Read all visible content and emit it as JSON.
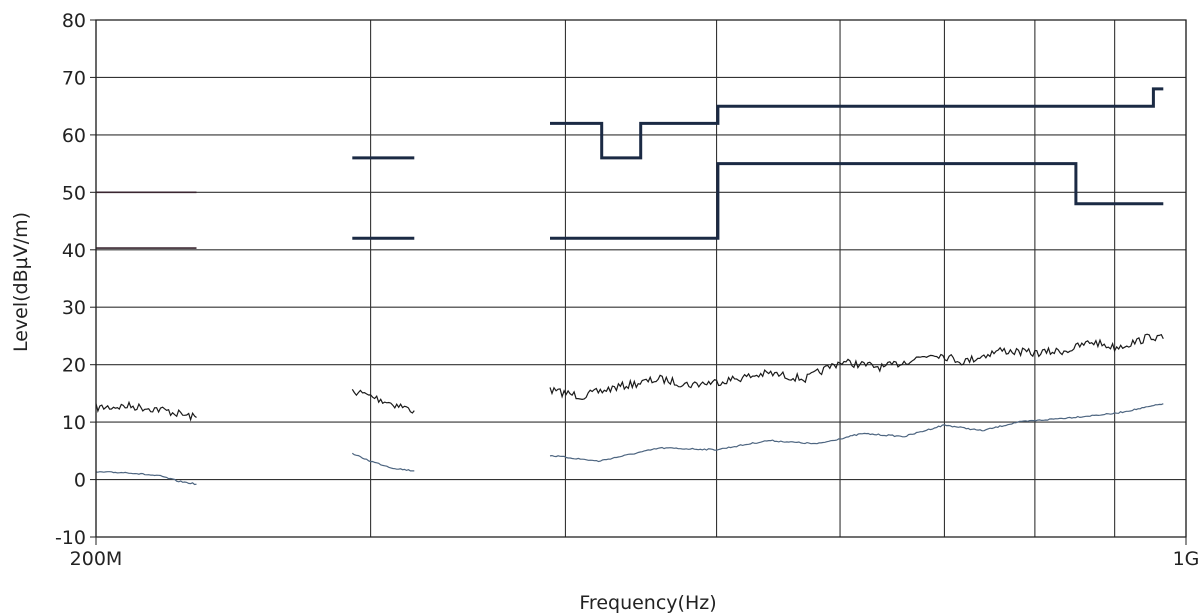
{
  "chart_data": {
    "type": "line",
    "title": "",
    "xlabel": "Frequency(Hz)",
    "ylabel": "Level(dBµV/m)",
    "xscale": "log",
    "xlim": [
      200000000,
      1000000000
    ],
    "ylim": [
      -10,
      80
    ],
    "grid": true,
    "legend": "none",
    "xtick_labels": [
      {
        "value": 200000000,
        "label": "200M"
      },
      {
        "value": 1000000000,
        "label": "1G"
      }
    ],
    "yticks": [
      -10,
      0,
      10,
      20,
      30,
      40,
      50,
      60,
      70,
      80
    ],
    "x_gridlines": [
      200000000,
      300000000,
      400000000,
      500000000,
      600000000,
      700000000,
      800000000,
      900000000,
      1000000000
    ],
    "colors": {
      "limit": "#1b2a44",
      "old_limit": "#3a2630",
      "peak": "#1a1a1a",
      "average": "#4d6580",
      "grid": "#333333"
    },
    "series": [
      {
        "role": "limit",
        "color": "old_limit",
        "width": 1.6,
        "segments": [
          [
            [
              200000000,
              50
            ],
            [
              232000000,
              50
            ]
          ]
        ]
      },
      {
        "role": "limit",
        "color": "old_limit",
        "width": 1.6,
        "segments": [
          [
            [
              200000000,
              40.3
            ],
            [
              232000000,
              40.3
            ]
          ]
        ]
      },
      {
        "role": "limit",
        "color": "limit",
        "width": 3,
        "segments": [
          [
            [
              292000000,
              56
            ],
            [
              320000000,
              56
            ]
          ],
          [
            [
              391000000,
              62
            ],
            [
              422000000,
              62
            ],
            [
              422000000,
              56
            ],
            [
              447000000,
              56
            ],
            [
              447000000,
              62
            ],
            [
              501000000,
              62
            ],
            [
              501000000,
              65
            ],
            [
              953000000,
              65
            ],
            [
              953000000,
              68
            ],
            [
              967000000,
              68
            ]
          ]
        ]
      },
      {
        "role": "limit",
        "color": "limit",
        "width": 3,
        "segments": [
          [
            [
              292000000,
              42
            ],
            [
              320000000,
              42
            ]
          ],
          [
            [
              391000000,
              42
            ],
            [
              501000000,
              42
            ],
            [
              501000000,
              55
            ],
            [
              850000000,
              55
            ],
            [
              850000000,
              48
            ],
            [
              967000000,
              48
            ]
          ]
        ]
      },
      {
        "role": "peak",
        "color": "peak",
        "width": 1.2,
        "noise": 0.7,
        "segments": [
          [
            [
              200000000,
              12.5
            ],
            [
              210000000,
              12.8
            ],
            [
              220000000,
              12.2
            ],
            [
              228000000,
              11.2
            ],
            [
              232000000,
              10.8
            ]
          ],
          [
            [
              292000000,
              15.5
            ],
            [
              300000000,
              14.5
            ],
            [
              310000000,
              13.2
            ],
            [
              320000000,
              12.0
            ]
          ],
          [
            [
              391000000,
              15.5
            ],
            [
              410000000,
              14.5
            ],
            [
              430000000,
              16.0
            ],
            [
              460000000,
              17.5
            ],
            [
              480000000,
              16.5
            ],
            [
              500000000,
              17.0
            ],
            [
              540000000,
              18.5
            ],
            [
              570000000,
              17.5
            ],
            [
              600000000,
              20.5
            ],
            [
              640000000,
              19.5
            ],
            [
              690000000,
              22.0
            ],
            [
              720000000,
              20.5
            ],
            [
              760000000,
              22.5
            ],
            [
              800000000,
              22.0
            ],
            [
              840000000,
              22.5
            ],
            [
              870000000,
              24.0
            ],
            [
              900000000,
              23.0
            ],
            [
              930000000,
              24.0
            ],
            [
              950000000,
              25.0
            ],
            [
              967000000,
              24.5
            ]
          ]
        ]
      },
      {
        "role": "average",
        "color": "average",
        "width": 1.2,
        "noise": 0.12,
        "segments": [
          [
            [
              200000000,
              1.3
            ],
            [
              210000000,
              1.2
            ],
            [
              220000000,
              0.6
            ],
            [
              226000000,
              -0.3
            ],
            [
              232000000,
              -0.8
            ]
          ],
          [
            [
              292000000,
              4.5
            ],
            [
              300000000,
              3.2
            ],
            [
              310000000,
              2.0
            ],
            [
              320000000,
              1.5
            ]
          ],
          [
            [
              391000000,
              4.2
            ],
            [
              420000000,
              3.2
            ],
            [
              460000000,
              5.5
            ],
            [
              500000000,
              5.2
            ],
            [
              540000000,
              6.8
            ],
            [
              580000000,
              6.2
            ],
            [
              620000000,
              8.0
            ],
            [
              660000000,
              7.5
            ],
            [
              700000000,
              9.5
            ],
            [
              740000000,
              8.5
            ],
            [
              780000000,
              10.0
            ],
            [
              820000000,
              10.5
            ],
            [
              860000000,
              11.0
            ],
            [
              900000000,
              11.5
            ],
            [
              940000000,
              12.5
            ],
            [
              967000000,
              13.2
            ]
          ]
        ]
      }
    ]
  }
}
